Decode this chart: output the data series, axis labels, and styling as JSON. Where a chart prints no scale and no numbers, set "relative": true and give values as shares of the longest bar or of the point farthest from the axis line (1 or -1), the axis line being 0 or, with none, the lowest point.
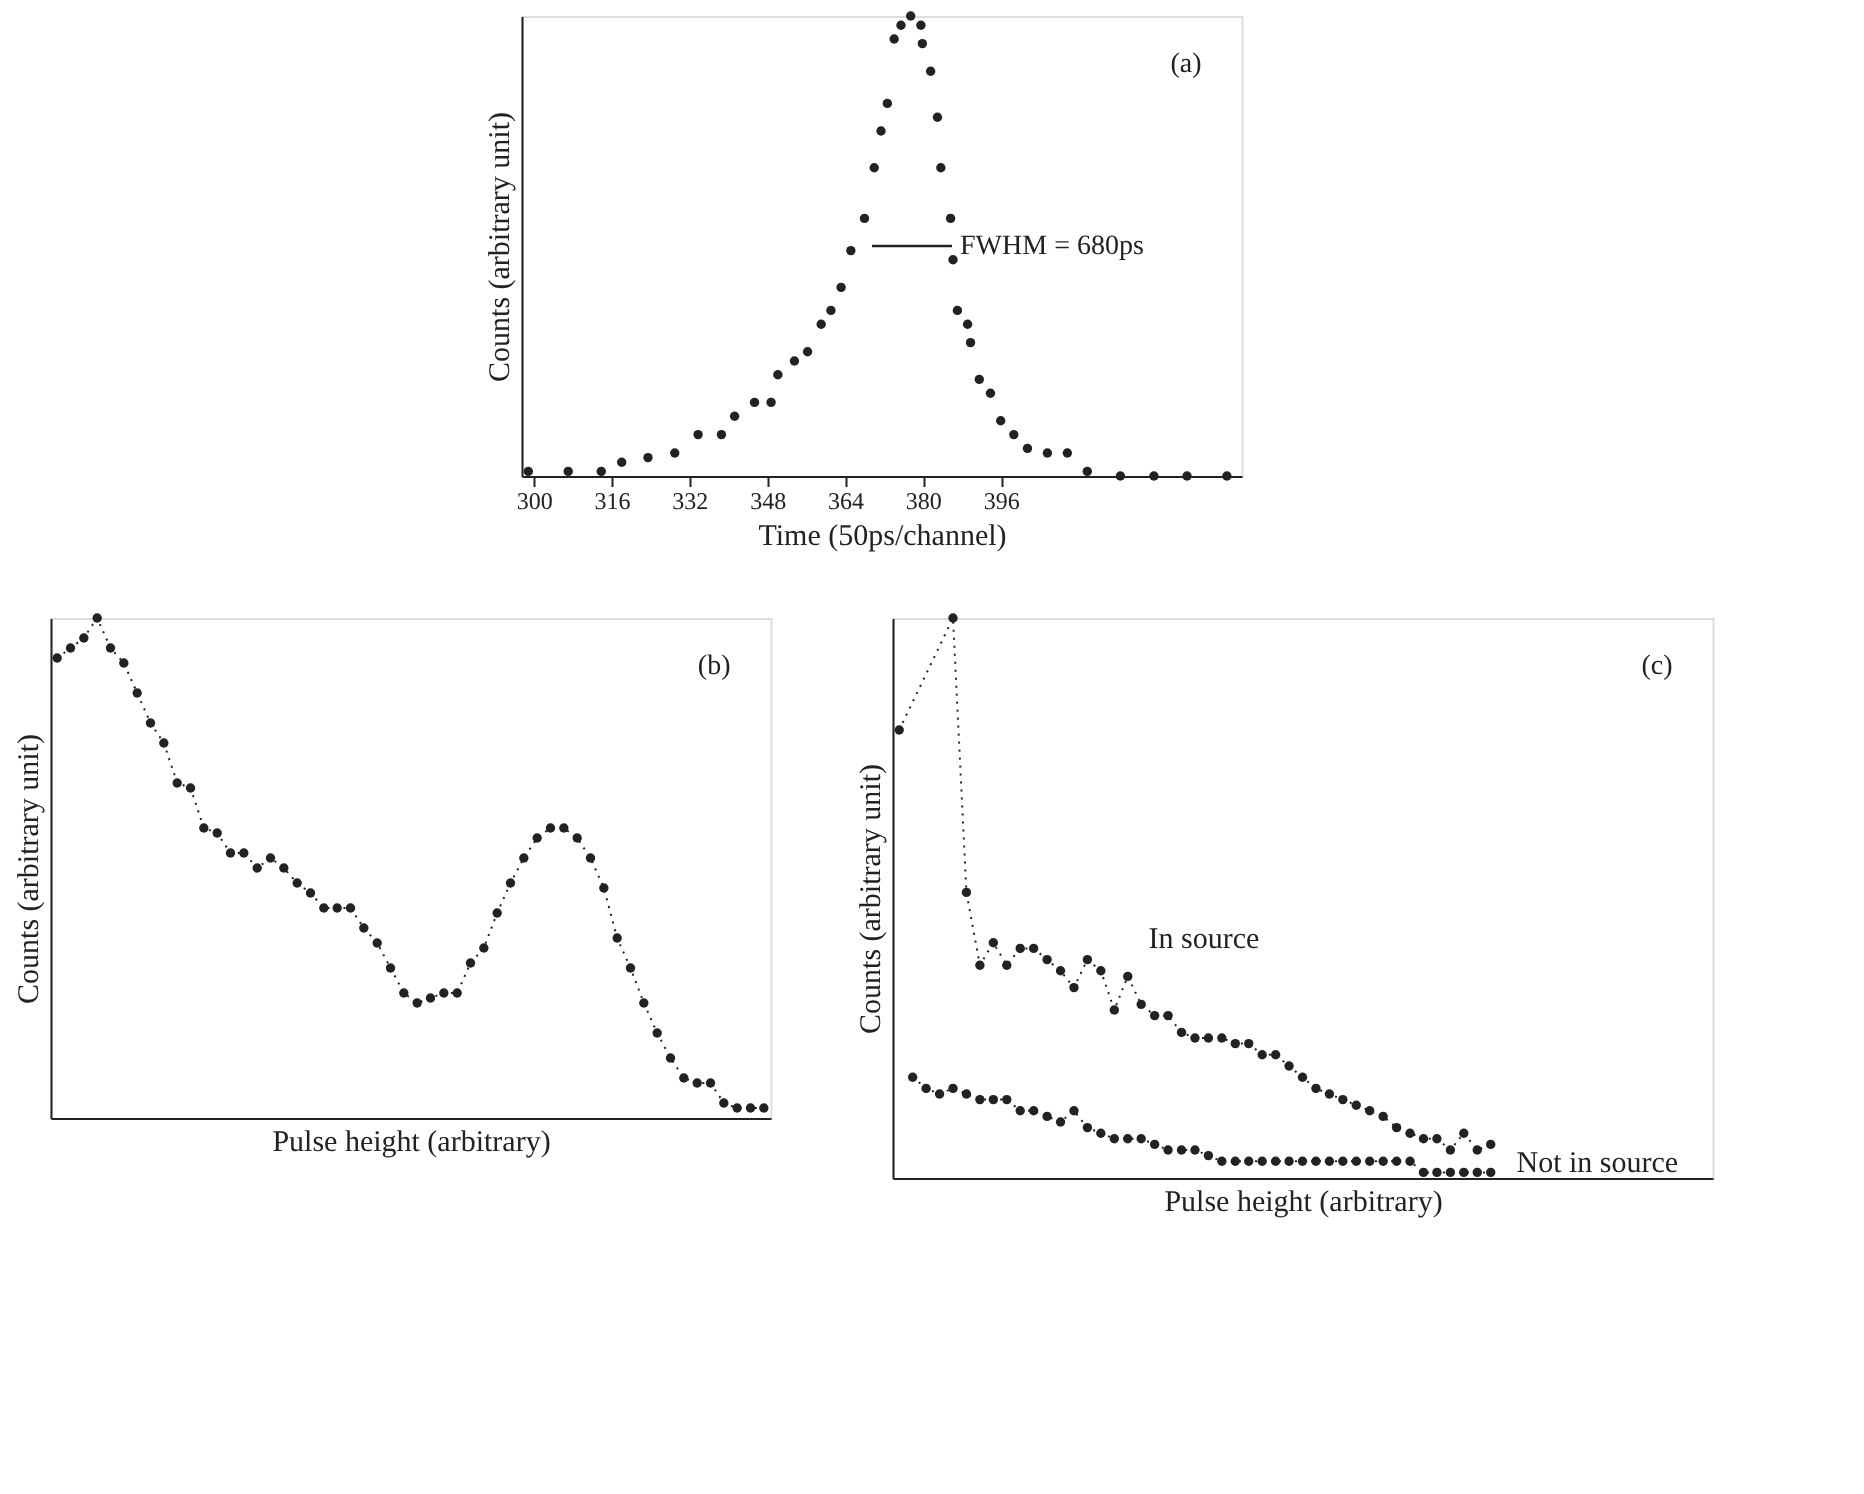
{
  "chart_data": [
    {
      "type": "scatter",
      "relative": true,
      "xlabel": "Time (50ps/channel)",
      "ylabel": "Counts (arbitrary unit)",
      "xlim": [
        297.5,
        445.5
      ],
      "xticks": [
        300,
        316,
        332,
        348,
        364,
        380,
        396
      ],
      "tick_labels": "x",
      "marker": "circle",
      "grid": false,
      "annotations": [
        "(a)",
        {
          "text": "FWHM = 680ps",
          "x": 386,
          "y": 0.5
        }
      ],
      "series": [
        {
          "color": "#222222",
          "x": [
            298.9,
            307.1,
            313.9,
            318.1,
            323.5,
            329.0,
            333.8,
            338.6,
            341.3,
            345.4,
            348.8,
            350.2,
            353.6,
            356.3,
            359.1,
            361.1,
            363.2,
            365.2,
            368.0,
            370.0,
            371.4,
            372.7,
            374.1,
            375.5,
            377.5,
            379.6,
            379.9,
            381.6,
            383.0,
            383.7,
            385.7,
            386.2,
            387.1,
            389.2,
            389.8,
            391.6,
            393.9,
            396.0,
            398.7,
            401.5,
            405.6,
            409.7,
            413.8,
            420.6,
            427.5,
            434.3,
            442.5
          ],
          "values": [
            0.01,
            0.01,
            0.01,
            0.03,
            0.04,
            0.05,
            0.09,
            0.09,
            0.13,
            0.16,
            0.16,
            0.22,
            0.25,
            0.27,
            0.33,
            0.36,
            0.41,
            0.49,
            0.56,
            0.67,
            0.75,
            0.81,
            0.95,
            0.98,
            1,
            0.98,
            0.94,
            0.88,
            0.78,
            0.67,
            0.56,
            0.47,
            0.36,
            0.33,
            0.29,
            0.21,
            0.18,
            0.12,
            0.09,
            0.06,
            0.05,
            0.05,
            0.01,
            0,
            0,
            0,
            0
          ]
        }
      ]
    },
    {
      "type": "line",
      "relative": true,
      "xlabel": "Pulse height (arbitrary)",
      "ylabel": "Counts (arbitrary unit)",
      "tick_labels": false,
      "marker": "circle",
      "line_style": "dotted",
      "grid": false,
      "annotations": [
        "(b)"
      ],
      "categories": [
        null,
        null,
        null,
        null,
        null,
        null,
        null,
        null,
        null,
        null,
        null,
        null,
        null,
        null,
        null,
        null,
        null,
        null,
        null,
        null,
        null,
        null,
        null,
        null,
        null,
        null,
        null,
        null,
        null,
        null,
        null,
        null,
        null,
        null,
        null,
        null,
        null,
        null,
        null,
        null,
        null,
        null,
        null,
        null,
        null,
        null,
        null,
        null,
        null,
        null,
        null,
        null,
        null,
        null
      ],
      "series": [
        {
          "color": "#222222",
          "values": [
            0.92,
            0.94,
            0.96,
            1,
            0.94,
            0.91,
            0.85,
            0.79,
            0.75,
            0.67,
            0.66,
            0.58,
            0.57,
            0.53,
            0.53,
            0.5,
            0.52,
            0.5,
            0.47,
            0.45,
            0.42,
            0.42,
            0.42,
            0.38,
            0.35,
            0.3,
            0.25,
            0.23,
            0.24,
            0.25,
            0.25,
            0.31,
            0.34,
            0.41,
            0.47,
            0.52,
            0.56,
            0.58,
            0.58,
            0.56,
            0.52,
            0.46,
            0.36,
            0.3,
            0.23,
            0.17,
            0.12,
            0.08,
            0.07,
            0.07,
            0.03,
            0.02,
            0.02,
            0.02
          ]
        }
      ]
    },
    {
      "type": "line",
      "relative": true,
      "xlabel": "Pulse height (arbitrary)",
      "ylabel": "Counts (arbitrary unit)",
      "tick_labels": false,
      "marker": "circle",
      "line_style": "dotted",
      "grid": false,
      "annotations": [
        "(c)"
      ],
      "categories": [
        null,
        null,
        null,
        null,
        null,
        null,
        null,
        null,
        null,
        null,
        null,
        null,
        null,
        null,
        null,
        null,
        null,
        null,
        null,
        null,
        null,
        null,
        null,
        null,
        null,
        null,
        null,
        null,
        null,
        null,
        null,
        null,
        null,
        null,
        null,
        null,
        null,
        null,
        null,
        null,
        null,
        null,
        null,
        null,
        null,
        null,
        null,
        null,
        null,
        null,
        null,
        null,
        null,
        null,
        null,
        null,
        null,
        null,
        null,
        null,
        null
      ],
      "series": [
        {
          "name": "In source",
          "color": "#222222",
          "values": [
            0.8,
            null,
            null,
            null,
            1,
            0.51,
            0.38,
            0.42,
            0.38,
            0.41,
            0.41,
            0.39,
            0.37,
            0.34,
            0.39,
            0.37,
            0.3,
            0.36,
            0.31,
            0.29,
            0.29,
            0.26,
            0.25,
            0.25,
            0.25,
            0.24,
            0.24,
            0.22,
            0.22,
            0.2,
            0.18,
            0.16,
            0.15,
            0.14,
            0.13,
            0.12,
            0.11,
            0.09,
            0.08,
            0.07,
            0.07,
            0.05,
            0.08,
            0.05,
            0.06,
            null,
            null,
            null,
            null,
            null,
            null,
            null,
            null,
            null,
            null,
            null,
            null,
            null,
            null,
            null,
            null
          ]
        },
        {
          "name": "Not in source",
          "color": "#222222",
          "values": [
            null,
            0.18,
            0.16,
            0.15,
            0.16,
            0.15,
            0.14,
            0.14,
            0.14,
            0.12,
            0.12,
            0.11,
            0.1,
            0.12,
            0.09,
            0.08,
            0.07,
            0.07,
            0.07,
            0.06,
            0.05,
            0.05,
            0.05,
            0.04,
            0.03,
            0.03,
            0.03,
            0.03,
            0.03,
            0.03,
            0.03,
            0.03,
            0.03,
            0.03,
            0.03,
            0.03,
            0.03,
            0.03,
            0.03,
            0.01,
            0.01,
            0.01,
            0.01,
            0.01,
            0.01,
            null,
            null,
            null,
            null,
            null,
            null,
            null,
            null,
            null,
            null,
            null,
            null,
            null,
            null,
            null,
            null
          ]
        }
      ]
    }
  ]
}
